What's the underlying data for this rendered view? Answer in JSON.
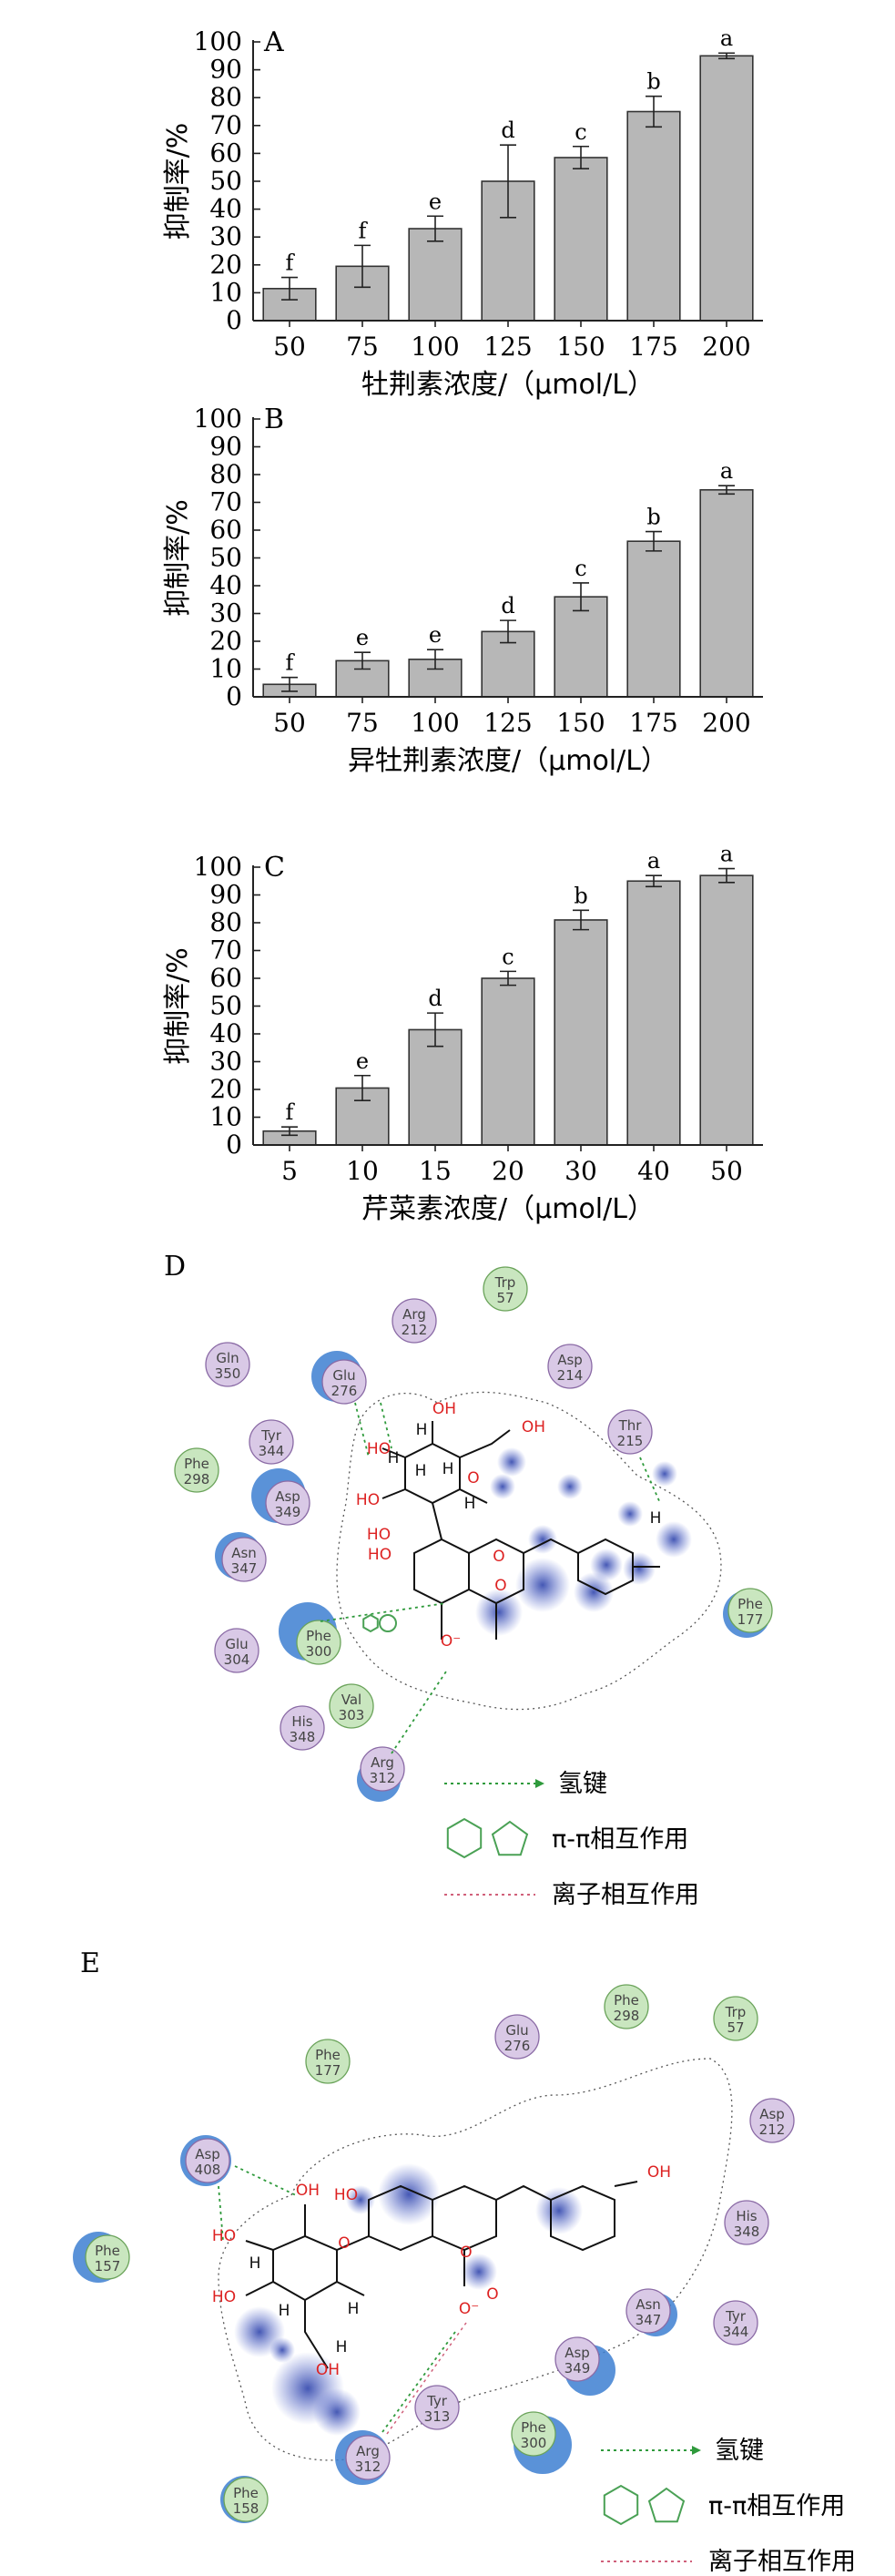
{
  "chart_data": [
    {
      "panel": "A",
      "type": "bar",
      "xlabel": "牡荆素浓度/（μmol/L）",
      "ylabel": "抑制率/%",
      "ylim": [
        0,
        100
      ],
      "yticks": [
        0,
        10,
        20,
        30,
        40,
        50,
        60,
        70,
        80,
        90,
        100
      ],
      "categories": [
        "50",
        "75",
        "100",
        "125",
        "150",
        "175",
        "200"
      ],
      "values": [
        11.5,
        19.5,
        33,
        50,
        58.5,
        75,
        95
      ],
      "errors": [
        4,
        7.5,
        4.5,
        13,
        4,
        5.5,
        1
      ],
      "significance": [
        "f",
        "f",
        "e",
        "d",
        "c",
        "b",
        "a"
      ],
      "bar_color": "#b7b7b7"
    },
    {
      "panel": "B",
      "type": "bar",
      "xlabel": "异牡荆素浓度/（μmol/L）",
      "ylabel": "抑制率/%",
      "ylim": [
        0,
        100
      ],
      "yticks": [
        0,
        10,
        20,
        30,
        40,
        50,
        60,
        70,
        80,
        90,
        100
      ],
      "categories": [
        "50",
        "75",
        "100",
        "125",
        "150",
        "175",
        "200"
      ],
      "values": [
        4.5,
        13,
        13.5,
        23.5,
        36,
        56,
        74.5
      ],
      "errors": [
        2.5,
        3,
        3.5,
        4,
        5,
        3.5,
        1.5
      ],
      "significance": [
        "f",
        "e",
        "e",
        "d",
        "c",
        "b",
        "a"
      ],
      "bar_color": "#b7b7b7"
    },
    {
      "panel": "C",
      "type": "bar",
      "xlabel": "芹菜素浓度/（μmol/L）",
      "ylabel": "抑制率/%",
      "ylim": [
        0,
        100
      ],
      "yticks": [
        0,
        10,
        20,
        30,
        40,
        50,
        60,
        70,
        80,
        90,
        100
      ],
      "categories": [
        "5",
        "10",
        "15",
        "20",
        "30",
        "40",
        "50"
      ],
      "values": [
        5,
        20.5,
        41.5,
        60,
        81,
        95,
        97
      ],
      "errors": [
        1.5,
        4.5,
        6,
        2.5,
        3.5,
        2,
        2.5
      ],
      "significance": [
        "f",
        "e",
        "d",
        "c",
        "b",
        "a",
        "a"
      ],
      "bar_color": "#b7b7b7"
    }
  ],
  "diagrams": {
    "D": {
      "label": "D",
      "residues": [
        {
          "name": "Trp",
          "num": "57",
          "kind": "green"
        },
        {
          "name": "Arg",
          "num": "212",
          "kind": "purple"
        },
        {
          "name": "Gln",
          "num": "350",
          "kind": "purple"
        },
        {
          "name": "Glu",
          "num": "276",
          "kind": "purple"
        },
        {
          "name": "Asp",
          "num": "214",
          "kind": "purple"
        },
        {
          "name": "Thr",
          "num": "215",
          "kind": "purple"
        },
        {
          "name": "Tyr",
          "num": "344",
          "kind": "purple"
        },
        {
          "name": "Phe",
          "num": "298",
          "kind": "green"
        },
        {
          "name": "Asp",
          "num": "349",
          "kind": "purple"
        },
        {
          "name": "Asn",
          "num": "347",
          "kind": "purple"
        },
        {
          "name": "Phe",
          "num": "300",
          "kind": "green"
        },
        {
          "name": "Glu",
          "num": "304",
          "kind": "purple"
        },
        {
          "name": "Val",
          "num": "303",
          "kind": "green"
        },
        {
          "name": "His",
          "num": "348",
          "kind": "purple"
        },
        {
          "name": "Arg",
          "num": "312",
          "kind": "purple"
        },
        {
          "name": "Phe",
          "num": "177",
          "kind": "green"
        }
      ],
      "atoms": [
        "OH",
        "HO",
        "HO",
        "HO",
        "H",
        "H",
        "H",
        "H",
        "H",
        "O",
        "OH",
        "HO",
        "O",
        "O",
        "O⁻",
        "H"
      ],
      "legend": {
        "hbond": "氢键",
        "pipi": "π-π相互作用",
        "ionic": "离子相互作用"
      }
    },
    "E": {
      "label": "E",
      "residues": [
        {
          "name": "Phe",
          "num": "298",
          "kind": "green"
        },
        {
          "name": "Trp",
          "num": "57",
          "kind": "green"
        },
        {
          "name": "Phe",
          "num": "177",
          "kind": "green"
        },
        {
          "name": "Glu",
          "num": "276",
          "kind": "purple"
        },
        {
          "name": "Asp",
          "num": "212",
          "kind": "purple"
        },
        {
          "name": "Asp",
          "num": "408",
          "kind": "purple"
        },
        {
          "name": "His",
          "num": "348",
          "kind": "purple"
        },
        {
          "name": "Phe",
          "num": "157",
          "kind": "green"
        },
        {
          "name": "Asn",
          "num": "347",
          "kind": "purple"
        },
        {
          "name": "Tyr",
          "num": "344",
          "kind": "purple"
        },
        {
          "name": "Asp",
          "num": "349",
          "kind": "purple"
        },
        {
          "name": "Tyr",
          "num": "313",
          "kind": "purple"
        },
        {
          "name": "Phe",
          "num": "300",
          "kind": "green"
        },
        {
          "name": "Arg",
          "num": "312",
          "kind": "purple"
        },
        {
          "name": "Phe",
          "num": "158",
          "kind": "green"
        }
      ],
      "atoms": [
        "OH",
        "HO",
        "OH",
        "HO",
        "H",
        "H",
        "H",
        "HO",
        "O",
        "O",
        "O⁻",
        "O",
        "OH",
        "H"
      ],
      "legend": {
        "hbond": "氢键",
        "pipi": "π-π相互作用",
        "ionic": "离子相互作用"
      }
    }
  },
  "colors": {
    "bar": "#b7b7b7",
    "purple_residue": "#d9c9e6",
    "green_residue": "#c9e6bf",
    "halo": "#3d7fd1",
    "hbond": "#2f9a3c",
    "ionic": "#d0607a",
    "pocket": "#555555"
  }
}
